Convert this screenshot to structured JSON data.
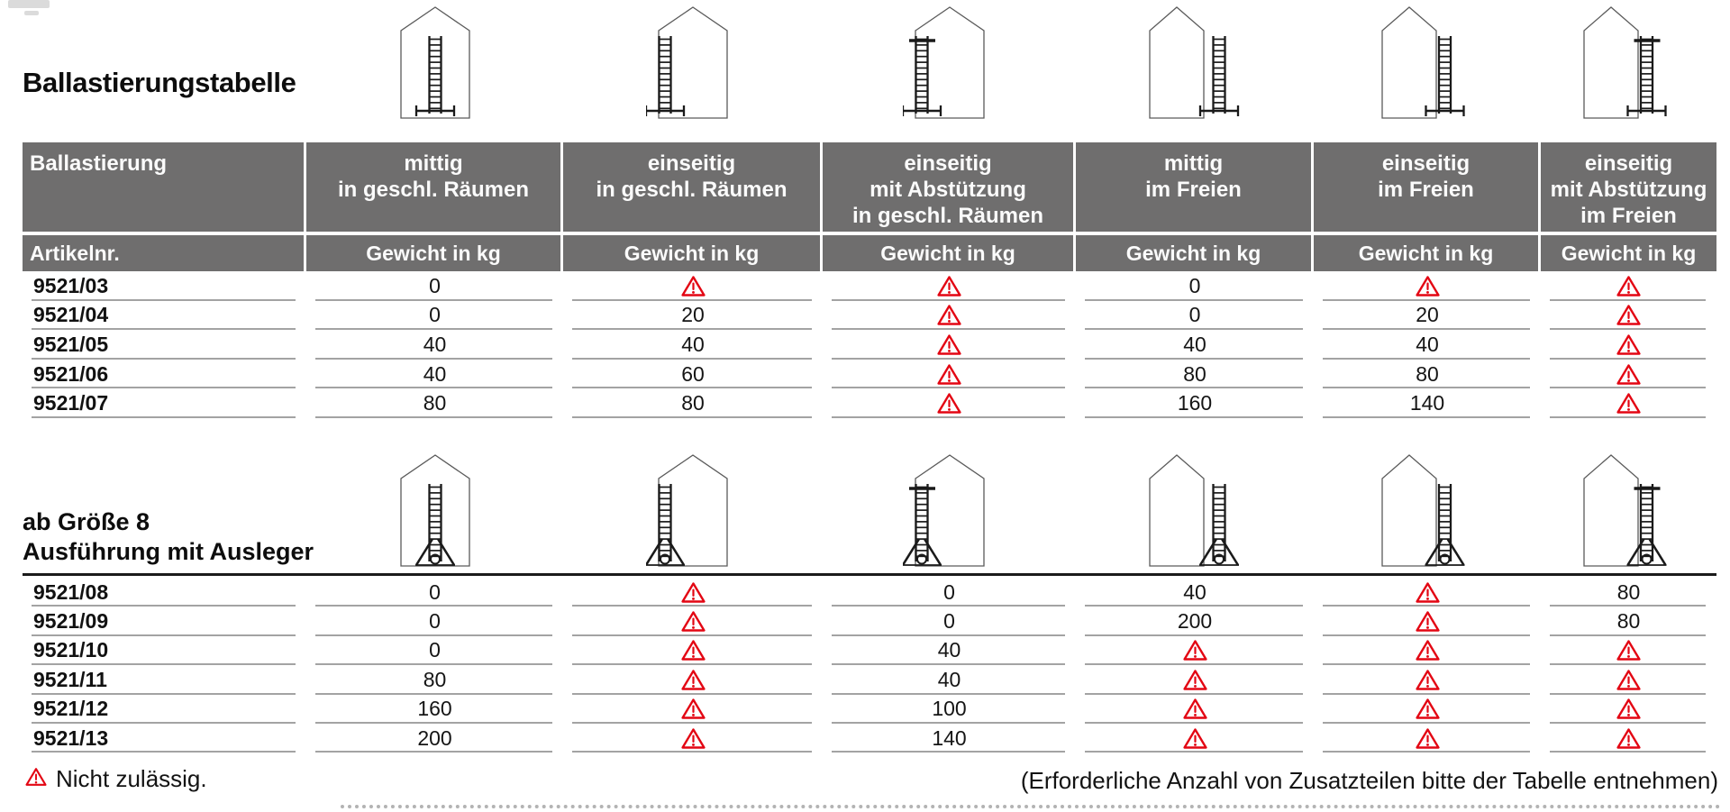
{
  "title": "Ballastierungstabelle",
  "colors": {
    "header_bg": "#6f6e6e",
    "warn_red": "#e30613",
    "row_line_gray": "#a3a3a3",
    "heavy_line_black": "#1b1b1b"
  },
  "header": {
    "ballastierung_label": "Ballastierung",
    "artikelnr_label": "Artikelnr.",
    "gewicht_label": "Gewicht in kg",
    "columns": [
      {
        "lines": [
          "mittig",
          "in geschl. Räumen"
        ]
      },
      {
        "lines": [
          "einseitig",
          "in geschl. Räumen"
        ]
      },
      {
        "lines": [
          "einseitig",
          "mit Abstützung",
          "in geschl. Räumen"
        ]
      },
      {
        "lines": [
          "mittig",
          "im Freien"
        ]
      },
      {
        "lines": [
          "einseitig",
          "im Freien"
        ]
      },
      {
        "lines": [
          "einseitig",
          "mit Abstützung",
          "im Freien"
        ]
      }
    ]
  },
  "table1_rows": [
    {
      "article": "9521/03",
      "values": [
        "0",
        "warn",
        "warn",
        "0",
        "warn",
        "warn"
      ]
    },
    {
      "article": "9521/04",
      "values": [
        "0",
        "20",
        "warn",
        "0",
        "20",
        "warn"
      ]
    },
    {
      "article": "9521/05",
      "values": [
        "40",
        "40",
        "warn",
        "40",
        "40",
        "warn"
      ]
    },
    {
      "article": "9521/06",
      "values": [
        "40",
        "60",
        "warn",
        "80",
        "80",
        "warn"
      ]
    },
    {
      "article": "9521/07",
      "values": [
        "80",
        "80",
        "warn",
        "160",
        "140",
        "warn"
      ]
    }
  ],
  "section2": {
    "label_lines": [
      "ab Größe 8",
      "Ausführung mit Ausleger"
    ]
  },
  "table2_rows": [
    {
      "article": "9521/08",
      "values": [
        "0",
        "warn",
        "0",
        "40",
        "warn",
        "80"
      ]
    },
    {
      "article": "9521/09",
      "values": [
        "0",
        "warn",
        "0",
        "200",
        "warn",
        "80"
      ]
    },
    {
      "article": "9521/10",
      "values": [
        "0",
        "warn",
        "40",
        "warn",
        "warn",
        "warn"
      ]
    },
    {
      "article": "9521/11",
      "values": [
        "80",
        "warn",
        "40",
        "warn",
        "warn",
        "warn"
      ]
    },
    {
      "article": "9521/12",
      "values": [
        "160",
        "warn",
        "100",
        "warn",
        "warn",
        "warn"
      ]
    },
    {
      "article": "9521/13",
      "values": [
        "200",
        "warn",
        "140",
        "warn",
        "warn",
        "warn"
      ]
    }
  ],
  "footer": {
    "legend_text": "Nicht zulässig.",
    "note_text": "(Erforderliche Anzahl von Zusatzteilen bitte der Tabelle entnehmen)"
  },
  "icons": {
    "warn_icon_name": "warning-triangle-icon",
    "table1": [
      {
        "name": "house-ladder-mittig-indoor-icon",
        "pos": "center",
        "legs": "beam",
        "support": false
      },
      {
        "name": "house-ladder-einseitig-indoor-icon",
        "pos": "left",
        "legs": "beam",
        "support": false
      },
      {
        "name": "house-ladder-einseitig-abstuetzung-indoor-icon",
        "pos": "left",
        "legs": "beam",
        "support": true
      },
      {
        "name": "house-ladder-mittig-outdoor-icon",
        "pos": "right-out",
        "legs": "beam",
        "support": false
      },
      {
        "name": "house-ladder-einseitig-outdoor-icon",
        "pos": "right-touch",
        "legs": "beam",
        "support": false
      },
      {
        "name": "house-ladder-einseitig-abstuetzung-outdoor-icon",
        "pos": "right-touch",
        "legs": "beam",
        "support": true
      }
    ],
    "table2": [
      {
        "name": "house-ladder-ausleger-mittig-indoor-icon",
        "pos": "center",
        "legs": "outrigger",
        "support": false
      },
      {
        "name": "house-ladder-ausleger-einseitig-indoor-icon",
        "pos": "left",
        "legs": "outrigger",
        "support": false
      },
      {
        "name": "house-ladder-ausleger-einseitig-abstuetzung-indoor-icon",
        "pos": "left",
        "legs": "outrigger",
        "support": true
      },
      {
        "name": "house-ladder-ausleger-mittig-outdoor-icon",
        "pos": "right-out",
        "legs": "outrigger",
        "support": false
      },
      {
        "name": "house-ladder-ausleger-einseitig-outdoor-icon",
        "pos": "right-touch",
        "legs": "outrigger",
        "support": false
      },
      {
        "name": "house-ladder-ausleger-einseitig-abstuetzung-outdoor-icon",
        "pos": "right-touch",
        "legs": "outrigger",
        "support": true
      }
    ]
  }
}
